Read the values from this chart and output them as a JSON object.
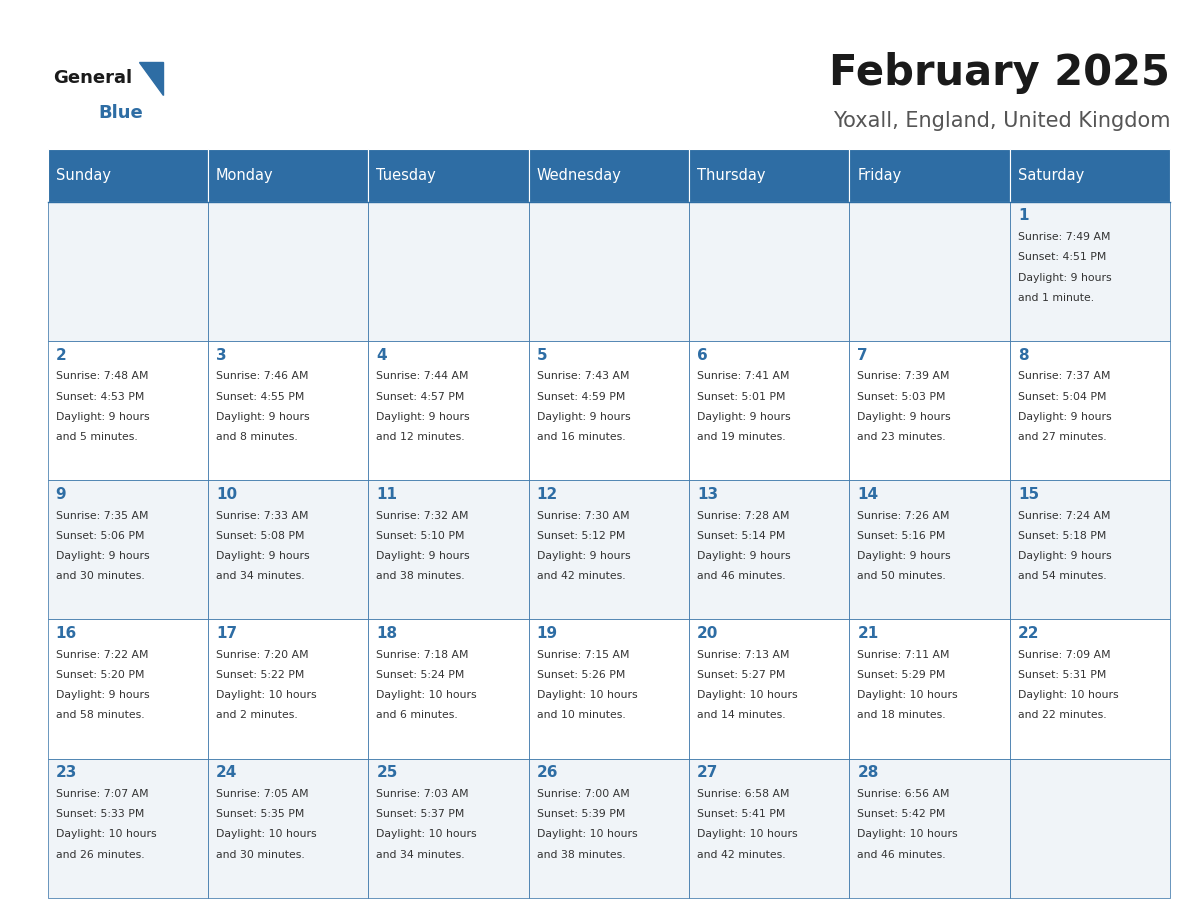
{
  "title": "February 2025",
  "subtitle": "Yoxall, England, United Kingdom",
  "header_bg": "#2e6da4",
  "header_text": "#ffffff",
  "day_names": [
    "Sunday",
    "Monday",
    "Tuesday",
    "Wednesday",
    "Thursday",
    "Friday",
    "Saturday"
  ],
  "row_bg_odd": "#f0f4f8",
  "row_bg_even": "#ffffff",
  "cell_border": "#2e6da4",
  "day_number_color": "#2e6da4",
  "info_color": "#333333",
  "logo_general_color": "#1a1a1a",
  "logo_blue_color": "#2e6da4",
  "title_color": "#1a1a1a",
  "subtitle_color": "#555555",
  "calendar_data": [
    [
      {
        "day": null,
        "info": ""
      },
      {
        "day": null,
        "info": ""
      },
      {
        "day": null,
        "info": ""
      },
      {
        "day": null,
        "info": ""
      },
      {
        "day": null,
        "info": ""
      },
      {
        "day": null,
        "info": ""
      },
      {
        "day": 1,
        "info": "Sunrise: 7:49 AM\nSunset: 4:51 PM\nDaylight: 9 hours\nand 1 minute."
      }
    ],
    [
      {
        "day": 2,
        "info": "Sunrise: 7:48 AM\nSunset: 4:53 PM\nDaylight: 9 hours\nand 5 minutes."
      },
      {
        "day": 3,
        "info": "Sunrise: 7:46 AM\nSunset: 4:55 PM\nDaylight: 9 hours\nand 8 minutes."
      },
      {
        "day": 4,
        "info": "Sunrise: 7:44 AM\nSunset: 4:57 PM\nDaylight: 9 hours\nand 12 minutes."
      },
      {
        "day": 5,
        "info": "Sunrise: 7:43 AM\nSunset: 4:59 PM\nDaylight: 9 hours\nand 16 minutes."
      },
      {
        "day": 6,
        "info": "Sunrise: 7:41 AM\nSunset: 5:01 PM\nDaylight: 9 hours\nand 19 minutes."
      },
      {
        "day": 7,
        "info": "Sunrise: 7:39 AM\nSunset: 5:03 PM\nDaylight: 9 hours\nand 23 minutes."
      },
      {
        "day": 8,
        "info": "Sunrise: 7:37 AM\nSunset: 5:04 PM\nDaylight: 9 hours\nand 27 minutes."
      }
    ],
    [
      {
        "day": 9,
        "info": "Sunrise: 7:35 AM\nSunset: 5:06 PM\nDaylight: 9 hours\nand 30 minutes."
      },
      {
        "day": 10,
        "info": "Sunrise: 7:33 AM\nSunset: 5:08 PM\nDaylight: 9 hours\nand 34 minutes."
      },
      {
        "day": 11,
        "info": "Sunrise: 7:32 AM\nSunset: 5:10 PM\nDaylight: 9 hours\nand 38 minutes."
      },
      {
        "day": 12,
        "info": "Sunrise: 7:30 AM\nSunset: 5:12 PM\nDaylight: 9 hours\nand 42 minutes."
      },
      {
        "day": 13,
        "info": "Sunrise: 7:28 AM\nSunset: 5:14 PM\nDaylight: 9 hours\nand 46 minutes."
      },
      {
        "day": 14,
        "info": "Sunrise: 7:26 AM\nSunset: 5:16 PM\nDaylight: 9 hours\nand 50 minutes."
      },
      {
        "day": 15,
        "info": "Sunrise: 7:24 AM\nSunset: 5:18 PM\nDaylight: 9 hours\nand 54 minutes."
      }
    ],
    [
      {
        "day": 16,
        "info": "Sunrise: 7:22 AM\nSunset: 5:20 PM\nDaylight: 9 hours\nand 58 minutes."
      },
      {
        "day": 17,
        "info": "Sunrise: 7:20 AM\nSunset: 5:22 PM\nDaylight: 10 hours\nand 2 minutes."
      },
      {
        "day": 18,
        "info": "Sunrise: 7:18 AM\nSunset: 5:24 PM\nDaylight: 10 hours\nand 6 minutes."
      },
      {
        "day": 19,
        "info": "Sunrise: 7:15 AM\nSunset: 5:26 PM\nDaylight: 10 hours\nand 10 minutes."
      },
      {
        "day": 20,
        "info": "Sunrise: 7:13 AM\nSunset: 5:27 PM\nDaylight: 10 hours\nand 14 minutes."
      },
      {
        "day": 21,
        "info": "Sunrise: 7:11 AM\nSunset: 5:29 PM\nDaylight: 10 hours\nand 18 minutes."
      },
      {
        "day": 22,
        "info": "Sunrise: 7:09 AM\nSunset: 5:31 PM\nDaylight: 10 hours\nand 22 minutes."
      }
    ],
    [
      {
        "day": 23,
        "info": "Sunrise: 7:07 AM\nSunset: 5:33 PM\nDaylight: 10 hours\nand 26 minutes."
      },
      {
        "day": 24,
        "info": "Sunrise: 7:05 AM\nSunset: 5:35 PM\nDaylight: 10 hours\nand 30 minutes."
      },
      {
        "day": 25,
        "info": "Sunrise: 7:03 AM\nSunset: 5:37 PM\nDaylight: 10 hours\nand 34 minutes."
      },
      {
        "day": 26,
        "info": "Sunrise: 7:00 AM\nSunset: 5:39 PM\nDaylight: 10 hours\nand 38 minutes."
      },
      {
        "day": 27,
        "info": "Sunrise: 6:58 AM\nSunset: 5:41 PM\nDaylight: 10 hours\nand 42 minutes."
      },
      {
        "day": 28,
        "info": "Sunrise: 6:56 AM\nSunset: 5:42 PM\nDaylight: 10 hours\nand 46 minutes."
      },
      {
        "day": null,
        "info": ""
      }
    ]
  ]
}
